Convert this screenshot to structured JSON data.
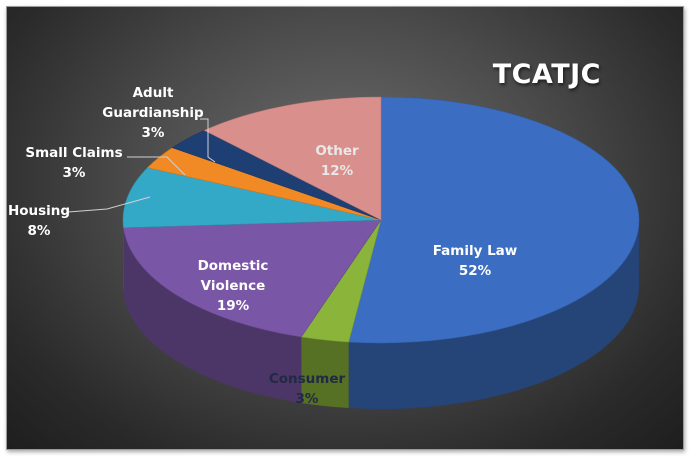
{
  "chart_data": {
    "type": "pie",
    "title": "TCATJC",
    "slices": [
      {
        "label": "Family Law",
        "value": 52,
        "value_label": "52%",
        "color": "#3b6ec2"
      },
      {
        "label": "Consumer",
        "value": 3,
        "value_label": "3%",
        "color": "#8ab43a"
      },
      {
        "label": "Domestic Violence",
        "value": 19,
        "value_label": "19%",
        "color": "#7a56a6"
      },
      {
        "label": "Housing",
        "value": 8,
        "value_label": "8%",
        "color": "#34a9c7"
      },
      {
        "label": "Small Claims",
        "value": 3,
        "value_label": "3%",
        "color": "#f18a24"
      },
      {
        "label": "Adult Guardianship",
        "value": 3,
        "value_label": "3%",
        "color": "#1e3f73"
      },
      {
        "label": "Other",
        "value": 12,
        "value_label": "12%",
        "color": "#d98f8c"
      }
    ],
    "label_colors": {
      "inside": "#ffffff",
      "outside": "#ffffff",
      "other": "#e8e8e8",
      "consumer": "#1f2a44"
    }
  }
}
